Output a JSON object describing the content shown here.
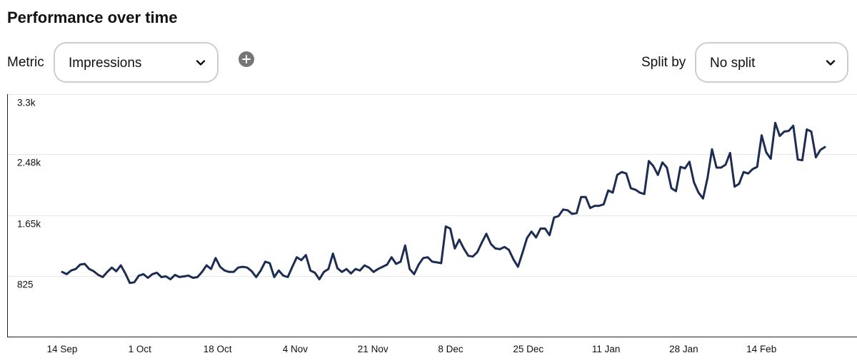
{
  "header": {
    "title": "Performance over time"
  },
  "controls": {
    "metric_label": "Metric",
    "metric_value": "Impressions",
    "split_label": "Split by",
    "split_value": "No split"
  },
  "icons": {
    "add": "plus-circle-icon",
    "dropdown": "chevron-down-icon"
  },
  "colors": {
    "line": "#1c2c53",
    "grid": "#e6e6e6",
    "axis": "#222222"
  },
  "chart_data": {
    "type": "line",
    "title": "",
    "xlabel": "",
    "ylabel": "",
    "ylim": [
      0,
      3300
    ],
    "y_ticks": [
      {
        "value": 825,
        "label": "825"
      },
      {
        "value": 1650,
        "label": "1.65k"
      },
      {
        "value": 2480,
        "label": "2.48k"
      },
      {
        "value": 3300,
        "label": "3.3k"
      }
    ],
    "x_ticks": [
      "14 Sep",
      "1 Oct",
      "18 Oct",
      "4 Nov",
      "21 Nov",
      "8 Dec",
      "25 Dec",
      "11 Jan",
      "28 Jan",
      "14 Feb"
    ],
    "x_start": "14 Sep",
    "x_end": "23 Feb",
    "grid": true,
    "legend": "none",
    "series": [
      {
        "values": [
          880,
          850,
          900,
          920,
          980,
          990,
          920,
          890,
          840,
          810,
          880,
          940,
          890,
          970,
          860,
          730,
          740,
          830,
          850,
          800,
          850,
          870,
          810,
          820,
          780,
          840,
          810,
          820,
          830,
          800,
          810,
          880,
          970,
          920,
          1070,
          950,
          900,
          880,
          880,
          940,
          950,
          940,
          890,
          810,
          900,
          1020,
          1000,
          810,
          900,
          830,
          810,
          950,
          1080,
          1040,
          1110,
          900,
          870,
          780,
          880,
          920,
          1130,
          930,
          880,
          920,
          860,
          920,
          900,
          970,
          940,
          880,
          920,
          950,
          980,
          1080,
          990,
          1020,
          1240,
          920,
          850,
          980,
          1070,
          1080,
          1020,
          1010,
          1000,
          1500,
          1470,
          1200,
          1320,
          1200,
          1100,
          1090,
          1150,
          1280,
          1400,
          1260,
          1200,
          1190,
          1220,
          1180,
          1050,
          950,
          1140,
          1340,
          1430,
          1350,
          1470,
          1470,
          1380,
          1620,
          1640,
          1730,
          1720,
          1670,
          1680,
          1900,
          1900,
          1750,
          1780,
          1780,
          1800,
          1990,
          1960,
          2200,
          2240,
          2220,
          2020,
          2000,
          1960,
          1940,
          2390,
          2320,
          2200,
          2370,
          2300,
          2020,
          1980,
          2310,
          2290,
          2380,
          2100,
          1960,
          1880,
          2160,
          2550,
          2300,
          2300,
          2340,
          2500,
          2040,
          2080,
          2240,
          2220,
          2280,
          2310,
          2740,
          2510,
          2420,
          2910,
          2730,
          2790,
          2800,
          2870,
          2410,
          2400,
          2820,
          2790,
          2440,
          2540,
          2580
        ]
      }
    ]
  }
}
